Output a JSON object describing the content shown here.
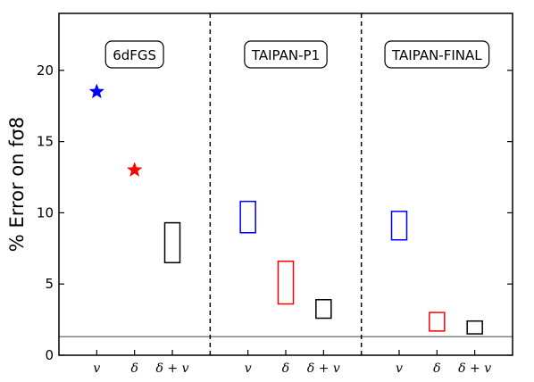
{
  "chart_data": {
    "type": "scatter",
    "ylabel": "% Error on fσ8",
    "ylim": [
      0,
      24
    ],
    "yticks": [
      0,
      5,
      10,
      15,
      20
    ],
    "grid": false,
    "reference_line": 1.3,
    "panels": [
      {
        "name": "6dFGS",
        "categories": [
          "v",
          "δ",
          "δ + v"
        ],
        "points": [
          {
            "category": "v",
            "marker": "star",
            "color": "#0000ff",
            "y": 18.5
          },
          {
            "category": "δ",
            "marker": "star",
            "color": "#ff0000",
            "y": 13.0
          },
          {
            "category": "δ + v",
            "marker": "box",
            "color": "#000000",
            "y_low": 6.5,
            "y_high": 9.3
          }
        ]
      },
      {
        "name": "TAIPAN-P1",
        "categories": [
          "v",
          "δ",
          "δ + v"
        ],
        "points": [
          {
            "category": "v",
            "marker": "box",
            "color": "#0000ff",
            "y_low": 8.6,
            "y_high": 10.8
          },
          {
            "category": "δ",
            "marker": "box",
            "color": "#ff0000",
            "y_low": 3.6,
            "y_high": 6.6
          },
          {
            "category": "δ + v",
            "marker": "box",
            "color": "#000000",
            "y_low": 2.6,
            "y_high": 3.9
          }
        ]
      },
      {
        "name": "TAIPAN-FINAL",
        "categories": [
          "v",
          "δ",
          "δ + v"
        ],
        "points": [
          {
            "category": "v",
            "marker": "box",
            "color": "#0000ff",
            "y_low": 8.1,
            "y_high": 10.1
          },
          {
            "category": "δ",
            "marker": "box",
            "color": "#ff0000",
            "y_low": 1.7,
            "y_high": 3.0
          },
          {
            "category": "δ + v",
            "marker": "box",
            "color": "#000000",
            "y_low": 1.5,
            "y_high": 2.4
          }
        ]
      }
    ]
  }
}
